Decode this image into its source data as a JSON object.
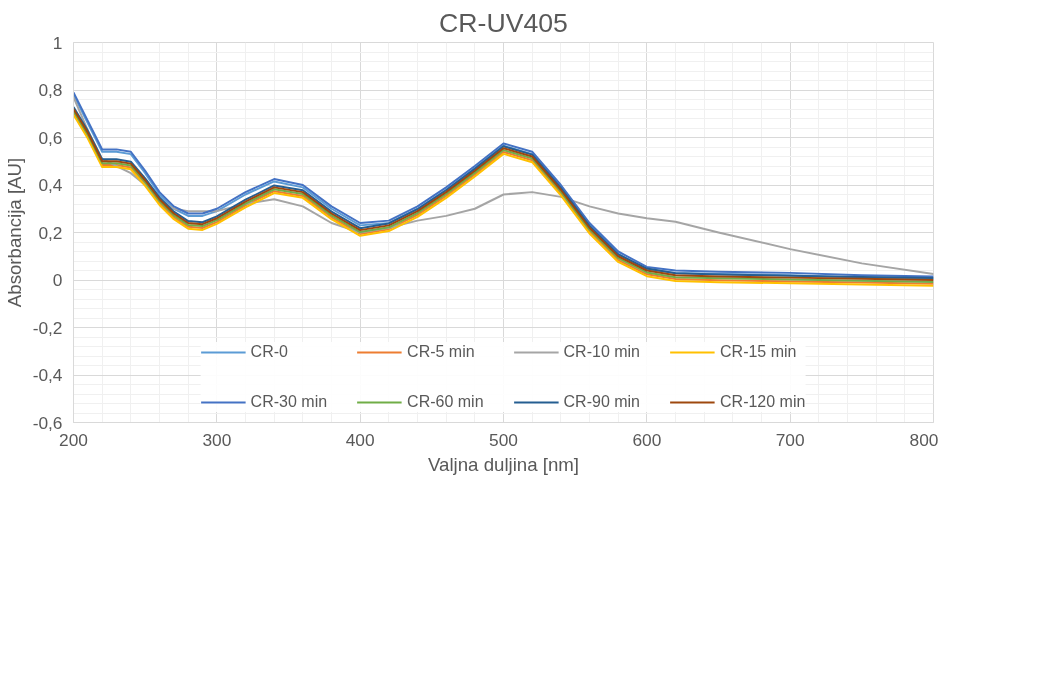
{
  "chart_data": {
    "type": "line",
    "title": "CR-UV405",
    "xlabel": "Valjna duljina [nm]",
    "ylabel": "Absorbancija [AU]",
    "x": [
      200,
      210,
      220,
      230,
      240,
      250,
      260,
      270,
      280,
      290,
      300,
      320,
      340,
      360,
      380,
      400,
      420,
      440,
      460,
      480,
      500,
      520,
      540,
      560,
      580,
      600,
      620,
      650,
      700,
      750,
      800
    ],
    "series": [
      {
        "name": "CR-0",
        "color": "#5b9bd5",
        "values": [
          0.78,
          0.66,
          0.54,
          0.54,
          0.53,
          0.45,
          0.36,
          0.3,
          0.27,
          0.27,
          0.29,
          0.36,
          0.415,
          0.39,
          0.3,
          0.23,
          0.24,
          0.3,
          0.38,
          0.47,
          0.565,
          0.53,
          0.39,
          0.23,
          0.11,
          0.045,
          0.03,
          0.025,
          0.02,
          0.01,
          0.005
        ]
      },
      {
        "name": "CR-5 min",
        "color": "#ed7d31",
        "values": [
          0.704,
          0.604,
          0.484,
          0.484,
          0.474,
          0.404,
          0.324,
          0.264,
          0.224,
          0.219,
          0.244,
          0.314,
          0.374,
          0.354,
          0.264,
          0.194,
          0.214,
          0.274,
          0.354,
          0.444,
          0.539,
          0.504,
          0.364,
          0.204,
          0.084,
          0.024,
          0.004,
          -0.001,
          -0.006,
          -0.011,
          -0.016
        ]
      },
      {
        "name": "CR-10 min",
        "color": "#a5a5a5",
        "values": [
          0.77,
          0.63,
          0.51,
          0.48,
          0.45,
          0.4,
          0.34,
          0.3,
          0.29,
          0.29,
          0.29,
          0.32,
          0.34,
          0.31,
          0.24,
          0.2,
          0.22,
          0.25,
          0.27,
          0.3,
          0.36,
          0.37,
          0.35,
          0.31,
          0.28,
          0.26,
          0.245,
          0.2,
          0.13,
          0.07,
          0.025
        ]
      },
      {
        "name": "CR-15 min",
        "color": "#ffc000",
        "values": [
          0.696,
          0.596,
          0.476,
          0.476,
          0.466,
          0.396,
          0.316,
          0.256,
          0.216,
          0.211,
          0.236,
          0.306,
          0.366,
          0.346,
          0.256,
          0.186,
          0.206,
          0.266,
          0.346,
          0.436,
          0.531,
          0.496,
          0.356,
          0.196,
          0.076,
          0.016,
          -0.004,
          -0.009,
          -0.014,
          -0.019,
          -0.024
        ]
      },
      {
        "name": "CR-30 min",
        "color": "#4472c4",
        "values": [
          0.79,
          0.67,
          0.55,
          0.55,
          0.54,
          0.46,
          0.37,
          0.31,
          0.28,
          0.28,
          0.3,
          0.37,
          0.425,
          0.4,
          0.31,
          0.24,
          0.25,
          0.31,
          0.39,
          0.48,
          0.575,
          0.54,
          0.4,
          0.24,
          0.12,
          0.055,
          0.04,
          0.035,
          0.03,
          0.02,
          0.015
        ]
      },
      {
        "name": "CR-60 min",
        "color": "#70ad47",
        "values": [
          0.712,
          0.612,
          0.492,
          0.492,
          0.482,
          0.412,
          0.332,
          0.272,
          0.232,
          0.227,
          0.252,
          0.322,
          0.382,
          0.362,
          0.272,
          0.202,
          0.222,
          0.282,
          0.362,
          0.452,
          0.547,
          0.512,
          0.372,
          0.212,
          0.092,
          0.032,
          0.012,
          0.007,
          0.002,
          -0.003,
          -0.008
        ]
      },
      {
        "name": "CR-90 min",
        "color": "#255e91",
        "values": [
          0.728,
          0.628,
          0.508,
          0.508,
          0.498,
          0.428,
          0.348,
          0.288,
          0.248,
          0.243,
          0.268,
          0.338,
          0.398,
          0.378,
          0.288,
          0.218,
          0.238,
          0.298,
          0.378,
          0.468,
          0.563,
          0.528,
          0.388,
          0.228,
          0.108,
          0.048,
          0.028,
          0.023,
          0.018,
          0.013,
          0.008
        ]
      },
      {
        "name": "CR-120 min",
        "color": "#9e480e",
        "values": [
          0.72,
          0.62,
          0.5,
          0.5,
          0.49,
          0.42,
          0.34,
          0.28,
          0.24,
          0.235,
          0.26,
          0.33,
          0.39,
          0.37,
          0.28,
          0.21,
          0.23,
          0.29,
          0.37,
          0.46,
          0.555,
          0.52,
          0.38,
          0.22,
          0.1,
          0.04,
          0.02,
          0.015,
          0.01,
          0.005,
          0.0
        ]
      }
    ],
    "xlim": [
      200,
      800
    ],
    "xticks": [
      200,
      300,
      400,
      500,
      600,
      700,
      800
    ],
    "ylim": [
      -0.6,
      1
    ],
    "yticks": [
      {
        "value": -0.6,
        "label": "-0,6"
      },
      {
        "value": -0.4,
        "label": "-0,4"
      },
      {
        "value": -0.2,
        "label": "-0,2"
      },
      0,
      {
        "value": 0.2,
        "label": "0,2"
      },
      {
        "value": 0.4,
        "label": "0,4"
      },
      {
        "value": 0.6,
        "label": "0,6"
      },
      {
        "value": 0.8,
        "label": "0,8"
      },
      1
    ],
    "grid": true,
    "legend": "bottom",
    "marker": "none",
    "line_style": "solid"
  }
}
